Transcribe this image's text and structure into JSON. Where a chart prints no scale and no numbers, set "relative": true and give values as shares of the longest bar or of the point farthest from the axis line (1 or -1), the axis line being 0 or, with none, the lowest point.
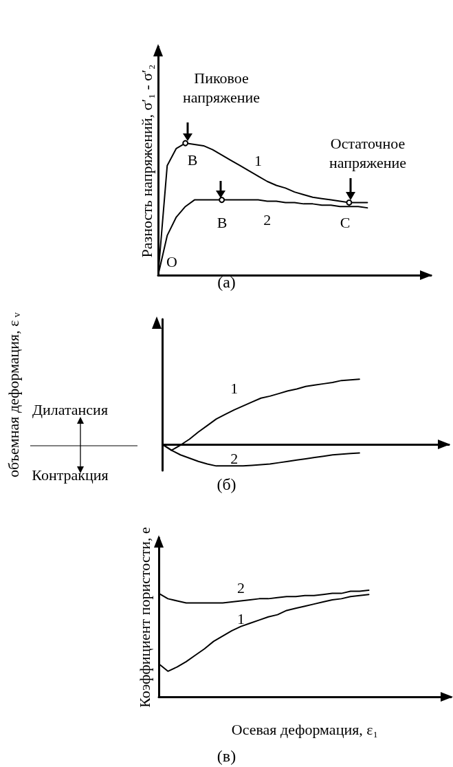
{
  "chart_data": [
    {
      "type": "line",
      "title": "(а)",
      "ylabel": "Разность напряжений, σ′₁ - σ′₂",
      "relative": true,
      "annotations": [
        "Пиковое напряжение",
        "Остаточное напряжение",
        "B",
        "B",
        "C",
        "O"
      ],
      "categories": [
        null,
        null,
        null,
        null,
        null,
        null,
        null,
        null,
        null,
        null,
        null,
        null,
        null,
        null,
        null,
        null,
        null,
        null,
        null,
        null,
        null,
        null,
        null,
        null,
        null,
        null,
        null,
        null,
        null,
        null,
        null
      ],
      "series": [
        {
          "name": "1",
          "color": "#000000",
          "values": [
            0,
            0.83,
            0.96,
            1.0,
            0.99,
            0.98,
            0.95,
            0.91,
            0.87,
            0.83,
            0.79,
            0.75,
            0.71,
            0.68,
            0.66,
            0.63,
            0.61,
            0.59,
            0.58,
            0.57,
            0.56,
            0.55,
            0.55,
            0.55,
            null,
            null,
            null,
            null,
            null,
            null,
            null
          ]
        },
        {
          "name": "2",
          "color": "#000000",
          "values": [
            0,
            0.3,
            0.44,
            0.52,
            0.57,
            0.57,
            0.57,
            0.57,
            0.57,
            0.57,
            0.57,
            0.57,
            0.56,
            0.56,
            0.55,
            0.55,
            0.54,
            0.54,
            0.53,
            0.53,
            0.52,
            0.52,
            0.52,
            0.51,
            null,
            null,
            null,
            null,
            null,
            null,
            null
          ]
        }
      ]
    },
    {
      "type": "line",
      "title": "(б)",
      "ylabel": "объемная деформация, ε$_{v}$",
      "relative": true,
      "annotations": [
        "Дилатансия",
        "Контракция"
      ],
      "categories": [
        null,
        null,
        null,
        null,
        null,
        null,
        null,
        null,
        null,
        null,
        null,
        null,
        null,
        null,
        null,
        null,
        null,
        null,
        null,
        null,
        null,
        null,
        null,
        null,
        null,
        null,
        null,
        null,
        null,
        null,
        null,
        null,
        null
      ],
      "series": [
        {
          "name": "1",
          "color": "#000000",
          "values": [
            0,
            -0.09,
            -0.01,
            0.08,
            0.19,
            0.29,
            0.39,
            0.46,
            0.53,
            0.59,
            0.65,
            0.71,
            0.74,
            0.78,
            0.82,
            0.85,
            0.89,
            0.91,
            0.93,
            0.95,
            0.98,
            0.99,
            1.0,
            null,
            null,
            null,
            null,
            null,
            null,
            null,
            null,
            null,
            null
          ]
        },
        {
          "name": "2",
          "color": "#000000",
          "values": [
            0,
            -0.09,
            -0.16,
            -0.21,
            -0.26,
            -0.3,
            -0.33,
            -0.33,
            -0.33,
            -0.33,
            -0.32,
            -0.31,
            -0.3,
            -0.28,
            -0.26,
            -0.24,
            -0.22,
            -0.2,
            -0.18,
            -0.16,
            -0.15,
            -0.14,
            -0.13,
            null,
            null,
            null,
            null,
            null,
            null,
            null,
            null,
            null,
            null
          ]
        }
      ]
    },
    {
      "type": "line",
      "title": "(в)",
      "ylabel": "Коэффициент пористости, е",
      "xlabel": "Осевая деформация, ε₁",
      "relative": true,
      "categories": [
        null,
        null,
        null,
        null,
        null,
        null,
        null,
        null,
        null,
        null,
        null,
        null,
        null,
        null,
        null,
        null,
        null,
        null,
        null,
        null,
        null,
        null,
        null,
        null,
        null,
        null,
        null,
        null,
        null,
        null,
        null,
        null,
        null
      ],
      "series": [
        {
          "name": "1",
          "color": "#000000",
          "values": [
            0.31,
            0.24,
            0.28,
            0.33,
            0.39,
            0.45,
            0.52,
            0.57,
            0.62,
            0.66,
            0.69,
            0.72,
            0.75,
            0.77,
            0.81,
            0.83,
            0.85,
            0.87,
            0.89,
            0.91,
            0.92,
            0.94,
            0.95,
            0.96,
            null,
            null,
            null,
            null,
            null,
            null,
            null,
            null,
            null
          ]
        },
        {
          "name": "2",
          "color": "#000000",
          "values": [
            0.97,
            0.92,
            0.9,
            0.88,
            0.88,
            0.88,
            0.88,
            0.88,
            0.89,
            0.9,
            0.91,
            0.92,
            0.92,
            0.93,
            0.94,
            0.94,
            0.95,
            0.95,
            0.96,
            0.97,
            0.97,
            0.99,
            0.99,
            1.0,
            null,
            null,
            null,
            null,
            null,
            null,
            null,
            null,
            null
          ]
        }
      ]
    }
  ]
}
